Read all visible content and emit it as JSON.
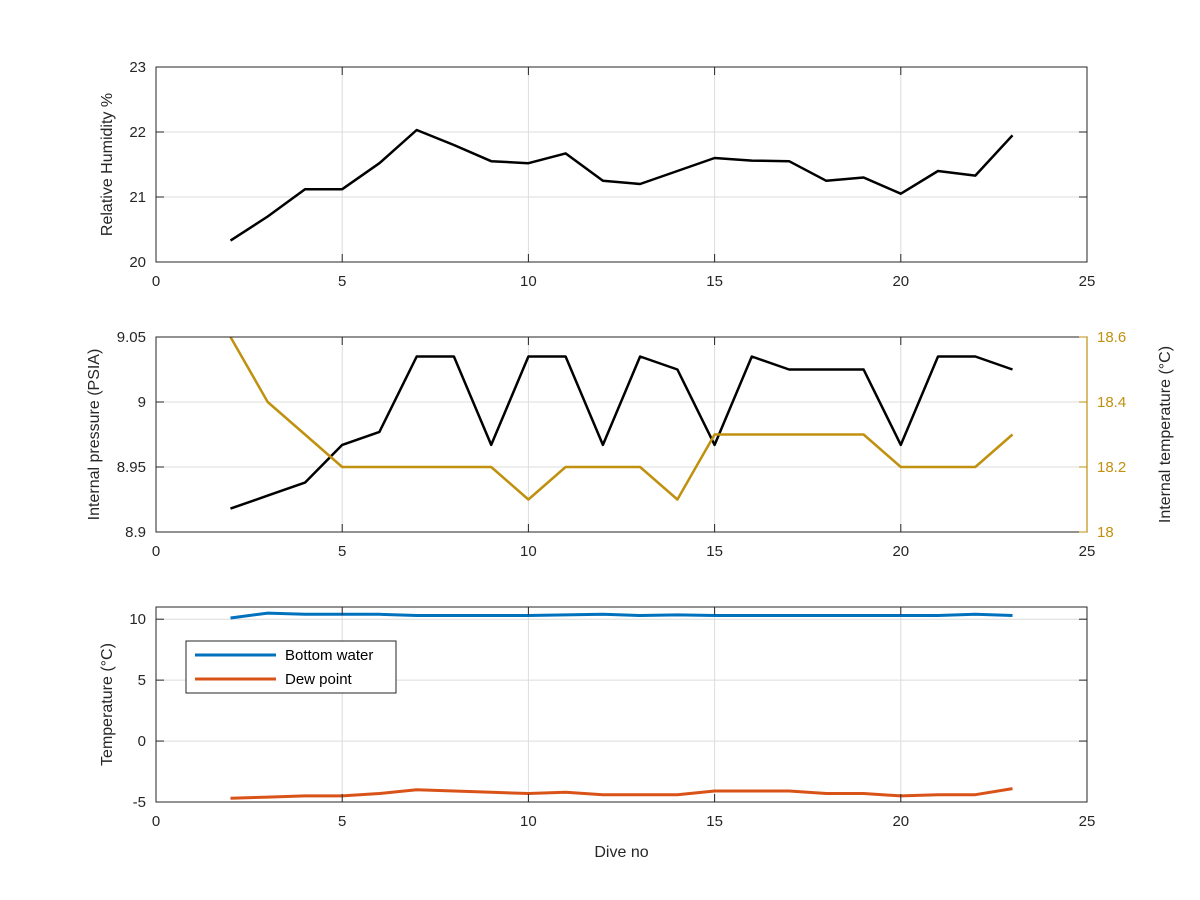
{
  "figure": {
    "colors": {
      "axis": "#262626",
      "grid": "#dcdcdc",
      "black_series": "#000000",
      "gold": "#c0900f",
      "blue": "#0072bd",
      "orange": "#d95319"
    }
  },
  "chart_data": [
    {
      "type": "line",
      "xlabel": "",
      "ylabel": "Relative Humidity %",
      "xlim": [
        0,
        25
      ],
      "ylim": [
        20,
        23
      ],
      "xticks": [
        0,
        5,
        10,
        15,
        20,
        25
      ],
      "yticks": [
        20,
        21,
        22,
        23
      ],
      "grid": true,
      "series": [
        {
          "color": "#000000",
          "x": [
            2,
            3,
            4,
            5,
            6,
            7,
            8,
            9,
            10,
            11,
            12,
            13,
            14,
            15,
            16,
            17,
            18,
            19,
            20,
            21,
            22,
            23
          ],
          "y": [
            20.33,
            20.7,
            21.12,
            21.12,
            21.52,
            22.03,
            21.8,
            21.55,
            21.52,
            21.67,
            21.25,
            21.2,
            21.4,
            21.6,
            21.56,
            21.55,
            21.25,
            21.3,
            21.05,
            21.4,
            21.33,
            21.95
          ]
        }
      ]
    },
    {
      "type": "line",
      "xlabel": "",
      "ylabel": "Internal pressure (PSIA)",
      "ylabel_right": "Internal temperature (°C)",
      "xlim": [
        0,
        25
      ],
      "ylim": [
        8.9,
        9.05
      ],
      "ylim_right": [
        18,
        18.6
      ],
      "xticks": [
        0,
        5,
        10,
        15,
        20,
        25
      ],
      "yticks": [
        8.9,
        8.95,
        9,
        9.05
      ],
      "ytick_labels": [
        "8.9",
        "8.95",
        "9",
        "9.05"
      ],
      "yticks_right": [
        18,
        18.2,
        18.4,
        18.6
      ],
      "ytick_labels_right": [
        "18",
        "18.2",
        "18.4",
        "18.6"
      ],
      "grid": true,
      "series": [
        {
          "axis": "left",
          "color": "#000000",
          "x": [
            2,
            3,
            4,
            5,
            6,
            7,
            8,
            9,
            10,
            11,
            12,
            13,
            14,
            15,
            16,
            17,
            18,
            19,
            20,
            21,
            22,
            23
          ],
          "y": [
            8.918,
            8.928,
            8.938,
            8.967,
            8.977,
            9.035,
            9.035,
            8.967,
            9.035,
            9.035,
            8.967,
            9.035,
            9.025,
            8.967,
            9.035,
            9.025,
            9.025,
            9.025,
            8.967,
            9.035,
            9.035,
            9.025
          ]
        },
        {
          "axis": "right",
          "color": "#c0900f",
          "x": [
            2,
            3,
            4,
            5,
            6,
            7,
            8,
            9,
            10,
            11,
            12,
            13,
            14,
            15,
            16,
            17,
            18,
            19,
            20,
            21,
            22,
            23
          ],
          "y": [
            18.6,
            18.4,
            18.3,
            18.2,
            18.2,
            18.2,
            18.2,
            18.2,
            18.1,
            18.2,
            18.2,
            18.2,
            18.1,
            18.3,
            18.3,
            18.3,
            18.3,
            18.3,
            18.2,
            18.2,
            18.2,
            18.3
          ]
        }
      ]
    },
    {
      "type": "line",
      "xlabel": "Dive no",
      "ylabel": "Temperature (°C)",
      "xlim": [
        0,
        25
      ],
      "ylim": [
        -5,
        11
      ],
      "xticks": [
        0,
        5,
        10,
        15,
        20,
        25
      ],
      "yticks": [
        -5,
        0,
        5,
        10
      ],
      "grid": true,
      "legend_position": "top-left",
      "series": [
        {
          "name": "Bottom water",
          "color": "#0072bd",
          "x": [
            2,
            3,
            4,
            5,
            6,
            7,
            8,
            9,
            10,
            11,
            12,
            13,
            14,
            15,
            16,
            17,
            18,
            19,
            20,
            21,
            22,
            23
          ],
          "y": [
            10.1,
            10.5,
            10.4,
            10.4,
            10.4,
            10.3,
            10.3,
            10.3,
            10.3,
            10.35,
            10.4,
            10.3,
            10.35,
            10.3,
            10.3,
            10.3,
            10.3,
            10.3,
            10.3,
            10.3,
            10.4,
            10.3
          ]
        },
        {
          "name": "Dew point",
          "color": "#d95319",
          "x": [
            2,
            3,
            4,
            5,
            6,
            7,
            8,
            9,
            10,
            11,
            12,
            13,
            14,
            15,
            16,
            17,
            18,
            19,
            20,
            21,
            22,
            23
          ],
          "y": [
            -4.7,
            -4.6,
            -4.5,
            -4.5,
            -4.3,
            -4.0,
            -4.1,
            -4.2,
            -4.3,
            -4.2,
            -4.4,
            -4.4,
            -4.4,
            -4.1,
            -4.1,
            -4.1,
            -4.3,
            -4.3,
            -4.5,
            -4.4,
            -4.4,
            -3.9
          ]
        }
      ]
    }
  ]
}
